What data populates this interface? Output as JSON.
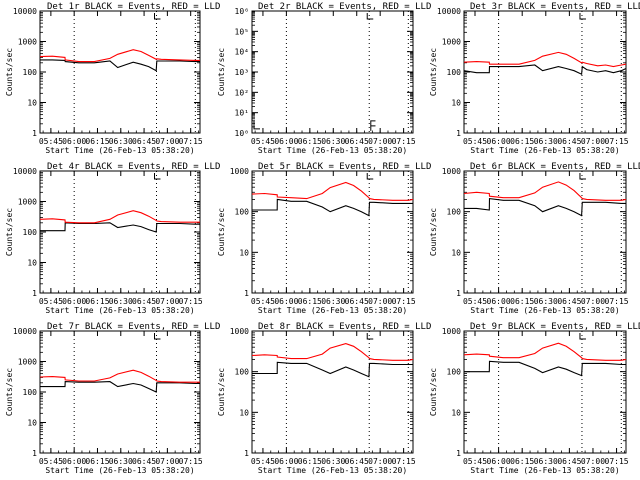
{
  "figure": {
    "xlabel": "Start Time (26-Feb-13 05:38:20)",
    "ylabel": "Counts/sec",
    "x_ticks": [
      "05:45",
      "06:00",
      "06:15",
      "06:30",
      "06:45",
      "07:00",
      "07:15"
    ],
    "events_color": "#000000",
    "lld_color": "#ff0000"
  },
  "chart_data": [
    {
      "type": "line",
      "title": "Det 1r BLACK = Events, RED = LLD",
      "x_units": "minutes after 05:38:20",
      "xlim": [
        0,
        103
      ],
      "ylim": [
        1,
        10000
      ],
      "yscale": "log",
      "y_ticks": [
        "1",
        "10",
        "100",
        "1000",
        "10000"
      ],
      "markers_at_top": [
        75
      ],
      "series": [
        {
          "name": "Events",
          "x": [
            0,
            8,
            16.1,
            16.2,
            25,
            35,
            45,
            50,
            60,
            65,
            70,
            74.8,
            75.2,
            78,
            90,
            100,
            103
          ],
          "values": [
            250,
            250,
            240,
            220,
            200,
            200,
            230,
            140,
            210,
            180,
            150,
            110,
            230,
            230,
            230,
            220,
            220
          ]
        },
        {
          "name": "LLD",
          "x": [
            0,
            8,
            16.1,
            16.2,
            25,
            35,
            45,
            50,
            60,
            65,
            70,
            74.8,
            75.2,
            78,
            90,
            100,
            103
          ],
          "values": [
            320,
            330,
            300,
            250,
            220,
            220,
            280,
            380,
            540,
            470,
            350,
            260,
            270,
            260,
            250,
            240,
            240
          ]
        }
      ]
    },
    {
      "type": "line",
      "title": "Det 2r BLACK = Events, RED = LLD",
      "x_units": "minutes after 05:38:20",
      "xlim": [
        0,
        103
      ],
      "ylim": [
        1,
        1000000
      ],
      "yscale": "log",
      "y_ticks": [
        "10⁰",
        "10¹",
        "10²",
        "10³",
        "10⁴",
        "10⁵",
        "10⁶"
      ],
      "markers_at_top": [
        75
      ],
      "series": [
        {
          "name": "Events",
          "x": [
            0,
            1,
            2,
            3,
            4
          ],
          "values": [
            2,
            2,
            2,
            2,
            2
          ]
        },
        {
          "name": "LLD",
          "x": [],
          "values": []
        }
      ]
    },
    {
      "type": "line",
      "title": "Det 3r BLACK = Events, RED = LLD",
      "x_units": "minutes after 05:38:20",
      "xlim": [
        0,
        103
      ],
      "ylim": [
        1,
        10000
      ],
      "yscale": "log",
      "y_ticks": [
        "1",
        "10",
        "100",
        "1000",
        "10000"
      ],
      "markers_at_top": [
        75
      ],
      "series": [
        {
          "name": "Events",
          "x": [
            0,
            8,
            16.1,
            16.2,
            25,
            35,
            45,
            50,
            60,
            65,
            70,
            74.8,
            75.2,
            78,
            85,
            90,
            95,
            100,
            103
          ],
          "values": [
            110,
            95,
            95,
            150,
            150,
            150,
            170,
            110,
            150,
            130,
            110,
            85,
            150,
            120,
            100,
            110,
            95,
            110,
            130
          ]
        },
        {
          "name": "LLD",
          "x": [
            0,
            8,
            16.1,
            16.2,
            25,
            35,
            45,
            50,
            60,
            65,
            70,
            74.8,
            75.2,
            78,
            85,
            90,
            95,
            100,
            103
          ],
          "values": [
            210,
            220,
            210,
            180,
            180,
            180,
            240,
            330,
            440,
            380,
            280,
            200,
            210,
            190,
            160,
            170,
            150,
            170,
            180
          ]
        }
      ]
    },
    {
      "type": "line",
      "title": "Det 4r BLACK = Events, RED = LLD",
      "x_units": "minutes after 05:38:20",
      "xlim": [
        0,
        103
      ],
      "ylim": [
        1,
        10000
      ],
      "yscale": "log",
      "y_ticks": [
        "1",
        "10",
        "100",
        "1000",
        "10000"
      ],
      "markers_at_top": [
        75
      ],
      "series": [
        {
          "name": "Events",
          "x": [
            0,
            8,
            16.1,
            16.2,
            25,
            35,
            45,
            50,
            60,
            65,
            70,
            74.8,
            75.2,
            78,
            90,
            100,
            103
          ],
          "values": [
            110,
            110,
            110,
            200,
            190,
            190,
            200,
            140,
            170,
            150,
            120,
            100,
            190,
            190,
            190,
            180,
            180
          ]
        },
        {
          "name": "LLD",
          "x": [
            0,
            8,
            16.1,
            16.2,
            25,
            35,
            45,
            50,
            60,
            65,
            70,
            74.8,
            75.2,
            78,
            90,
            100,
            103
          ],
          "values": [
            260,
            270,
            250,
            210,
            200,
            200,
            260,
            360,
            500,
            430,
            330,
            240,
            230,
            220,
            210,
            210,
            210
          ]
        }
      ]
    },
    {
      "type": "line",
      "title": "Det 5r BLACK = Events, RED = LLD",
      "x_units": "minutes after 05:38:20",
      "xlim": [
        0,
        103
      ],
      "ylim": [
        1,
        1000
      ],
      "yscale": "log",
      "y_ticks": [
        "1",
        "10",
        "100",
        "1000"
      ],
      "markers_at_top": [
        75
      ],
      "series": [
        {
          "name": "Events",
          "x": [
            0,
            8,
            16.1,
            16.2,
            25,
            35,
            45,
            50,
            60,
            65,
            70,
            74.8,
            75.2,
            78,
            90,
            100,
            103
          ],
          "values": [
            110,
            110,
            110,
            200,
            180,
            180,
            130,
            100,
            140,
            120,
            100,
            80,
            170,
            170,
            160,
            160,
            160
          ]
        },
        {
          "name": "LLD",
          "x": [
            0,
            8,
            16.1,
            16.2,
            25,
            35,
            45,
            50,
            60,
            65,
            70,
            74.8,
            75.2,
            78,
            90,
            100,
            103
          ],
          "values": [
            270,
            280,
            260,
            230,
            220,
            210,
            280,
            390,
            520,
            440,
            320,
            220,
            210,
            200,
            190,
            190,
            200
          ]
        }
      ]
    },
    {
      "type": "line",
      "title": "Det 6r BLACK = Events, RED = LLD",
      "x_units": "minutes after 05:38:20",
      "xlim": [
        0,
        103
      ],
      "ylim": [
        1,
        1000
      ],
      "yscale": "log",
      "y_ticks": [
        "1",
        "10",
        "100",
        "1000"
      ],
      "markers_at_top": [
        75
      ],
      "series": [
        {
          "name": "Events",
          "x": [
            0,
            8,
            16.1,
            16.2,
            25,
            35,
            45,
            50,
            60,
            65,
            70,
            74.8,
            75.2,
            78,
            90,
            100,
            103
          ],
          "values": [
            120,
            120,
            110,
            210,
            190,
            190,
            140,
            100,
            140,
            120,
            100,
            80,
            170,
            170,
            170,
            160,
            160
          ]
        },
        {
          "name": "LLD",
          "x": [
            0,
            8,
            16.1,
            16.2,
            25,
            35,
            45,
            50,
            60,
            65,
            70,
            74.8,
            75.2,
            78,
            90,
            100,
            103
          ],
          "values": [
            280,
            300,
            280,
            240,
            220,
            220,
            290,
            400,
            540,
            450,
            330,
            220,
            210,
            200,
            190,
            190,
            200
          ]
        }
      ]
    },
    {
      "type": "line",
      "title": "Det 7r BLACK = Events, RED = LLD",
      "x_units": "minutes after 05:38:20",
      "xlim": [
        0,
        103
      ],
      "ylim": [
        1,
        10000
      ],
      "yscale": "log",
      "y_ticks": [
        "1",
        "10",
        "100",
        "1000",
        "10000"
      ],
      "markers_at_top": [
        75
      ],
      "series": [
        {
          "name": "Events",
          "x": [
            0,
            8,
            16.1,
            16.2,
            25,
            35,
            45,
            50,
            60,
            65,
            70,
            74.8,
            75.2,
            78,
            90,
            100,
            103
          ],
          "values": [
            150,
            150,
            150,
            220,
            210,
            210,
            220,
            150,
            190,
            170,
            130,
            100,
            200,
            200,
            200,
            190,
            190
          ]
        },
        {
          "name": "LLD",
          "x": [
            0,
            8,
            16.1,
            16.2,
            25,
            35,
            45,
            50,
            60,
            65,
            70,
            74.8,
            75.2,
            78,
            90,
            100,
            103
          ],
          "values": [
            310,
            320,
            300,
            250,
            230,
            230,
            290,
            390,
            520,
            440,
            330,
            240,
            230,
            220,
            210,
            210,
            210
          ]
        }
      ]
    },
    {
      "type": "line",
      "title": "Det 8r BLACK = Events, RED = LLD",
      "x_units": "minutes after 05:38:20",
      "xlim": [
        0,
        103
      ],
      "ylim": [
        1,
        1000
      ],
      "yscale": "log",
      "y_ticks": [
        "1",
        "10",
        "100",
        "1000"
      ],
      "markers_at_top": [
        75
      ],
      "series": [
        {
          "name": "Events",
          "x": [
            0,
            8,
            16.1,
            16.2,
            25,
            35,
            45,
            50,
            60,
            65,
            70,
            74.8,
            75.2,
            78,
            90,
            100,
            103
          ],
          "values": [
            90,
            90,
            90,
            170,
            160,
            160,
            110,
            90,
            130,
            110,
            90,
            75,
            160,
            160,
            150,
            150,
            150
          ]
        },
        {
          "name": "LLD",
          "x": [
            0,
            8,
            16.1,
            16.2,
            25,
            35,
            45,
            50,
            60,
            65,
            70,
            74.8,
            75.2,
            78,
            90,
            100,
            103
          ],
          "values": [
            250,
            260,
            250,
            230,
            210,
            210,
            270,
            380,
            490,
            420,
            310,
            220,
            210,
            200,
            190,
            190,
            200
          ]
        }
      ]
    },
    {
      "type": "line",
      "title": "Det 9r BLACK = Events, RED = LLD",
      "x_units": "minutes after 05:38:20",
      "xlim": [
        0,
        103
      ],
      "ylim": [
        1,
        1000
      ],
      "yscale": "log",
      "y_ticks": [
        "1",
        "10",
        "100",
        "1000"
      ],
      "markers_at_top": [
        75
      ],
      "series": [
        {
          "name": "Events",
          "x": [
            0,
            8,
            16.1,
            16.2,
            25,
            35,
            45,
            50,
            60,
            65,
            70,
            74.8,
            75.2,
            78,
            90,
            100,
            103
          ],
          "values": [
            100,
            100,
            100,
            180,
            170,
            170,
            120,
            95,
            130,
            115,
            95,
            80,
            160,
            160,
            160,
            150,
            150
          ]
        },
        {
          "name": "LLD",
          "x": [
            0,
            8,
            16.1,
            16.2,
            25,
            35,
            45,
            50,
            60,
            65,
            70,
            74.8,
            75.2,
            78,
            90,
            100,
            103
          ],
          "values": [
            260,
            270,
            260,
            240,
            220,
            220,
            280,
            380,
            500,
            420,
            310,
            220,
            210,
            200,
            190,
            190,
            200
          ]
        }
      ]
    }
  ]
}
